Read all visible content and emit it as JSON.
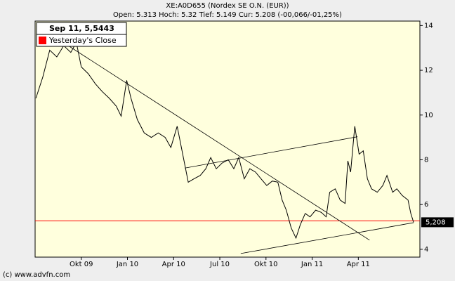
{
  "chart_data": {
    "type": "line",
    "title": "XE:A0D655 (Nordex SE O.N. (EUR))",
    "subtitle": "Open: 5.313 Hoch: 5.32 Tief: 5.149 Cur: 5.208 (-00,066/-01,25%)",
    "legend_title": "Sep 11, 5,5443",
    "footer": "(c) www.advfn.com",
    "color": "#000000",
    "x": [
      0.05,
      0.5,
      0.95,
      1.41,
      1.86,
      2.32,
      2.68,
      3,
      3.45,
      3.91,
      4.36,
      4.82,
      5.27,
      5.59,
      5.95,
      6.23,
      6.64,
      7.09,
      7.55,
      8,
      8.45,
      8.82,
      9.23,
      9.59,
      9.95,
      10.32,
      10.73,
      11.09,
      11.41,
      11.77,
      12.14,
      12.55,
      12.91,
      13.23,
      13.59,
      13.95,
      14.32,
      14.68,
      15.05,
      15.41,
      15.77,
      16.05,
      16.32,
      16.64,
      16.95,
      17.23,
      17.55,
      17.86,
      18.23,
      18.59,
      18.91,
      19.14,
      19.5,
      19.82,
      20.14,
      20.32,
      20.5,
      20.77,
      21.05,
      21.32,
      21.59,
      21.86,
      22.23,
      22.59,
      22.86,
      23.23,
      23.5,
      23.86,
      24.23,
      24.41,
      24.59
    ],
    "values": [
      10.75,
      11.7,
      12.9,
      12.6,
      13.1,
      12.8,
      13.25,
      12.15,
      11.85,
      11.4,
      11.05,
      10.75,
      10.4,
      9.95,
      11.55,
      10.75,
      9.8,
      9.2,
      9.0,
      9.2,
      9.0,
      8.55,
      9.5,
      8.25,
      7.0,
      7.15,
      7.3,
      7.6,
      8.1,
      7.6,
      7.85,
      8.0,
      7.6,
      8.1,
      7.15,
      7.6,
      7.45,
      7.15,
      6.85,
      7.05,
      7.0,
      6.2,
      5.75,
      4.95,
      4.5,
      5.1,
      5.6,
      5.45,
      5.75,
      5.65,
      5.45,
      6.55,
      6.7,
      6.2,
      6.05,
      7.95,
      7.45,
      9.5,
      8.25,
      8.4,
      7.15,
      6.7,
      6.55,
      6.85,
      7.3,
      6.55,
      6.7,
      6.4,
      6.2,
      5.6,
      5.208
    ],
    "trendlines": [
      {
        "x": [
          2.18,
          21.73
        ],
        "y": [
          13.09,
          4.41
        ]
      },
      {
        "x": [
          9.73,
          20.95
        ],
        "y": [
          7.63,
          9.03
        ]
      },
      {
        "x": [
          13.36,
          24.59
        ],
        "y": [
          3.81,
          5.19
        ]
      }
    ],
    "yesterday_close": {
      "label": "Yesterday's Close",
      "value": 5.27,
      "color": "#ff0000"
    },
    "current": {
      "value": 5.208,
      "label": "5,208"
    },
    "xlim": [
      0,
      25
    ],
    "xticks": [
      {
        "value": 3,
        "label": "Okt 09"
      },
      {
        "value": 6,
        "label": "Jan 10"
      },
      {
        "value": 9,
        "label": "Apr 10"
      },
      {
        "value": 12,
        "label": "Jul 10"
      },
      {
        "value": 15,
        "label": "Okt 10"
      },
      {
        "value": 18,
        "label": "Jan 11"
      },
      {
        "value": 21,
        "label": "Apr 11"
      }
    ],
    "ylim": [
      3.65,
      14.2
    ],
    "yticks": [
      4,
      6,
      8,
      10,
      12,
      14
    ]
  }
}
